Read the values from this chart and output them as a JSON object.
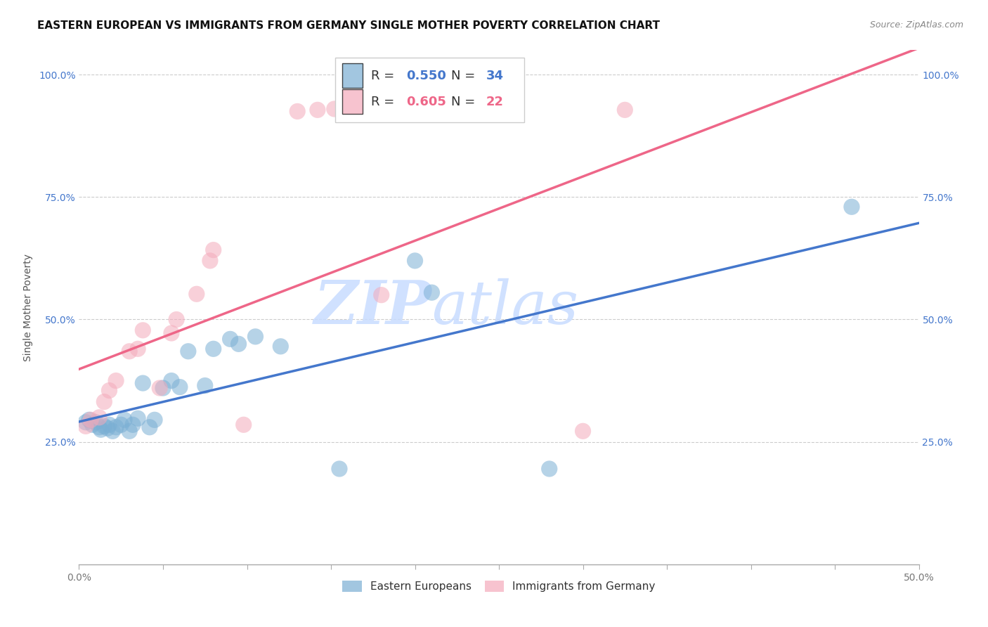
{
  "title": "EASTERN EUROPEAN VS IMMIGRANTS FROM GERMANY SINGLE MOTHER POVERTY CORRELATION CHART",
  "source": "Source: ZipAtlas.com",
  "ylabel": "Single Mother Poverty",
  "xlim": [
    0.0,
    0.5
  ],
  "ylim": [
    0.0,
    1.05
  ],
  "xtick_vals": [
    0.0,
    0.05,
    0.1,
    0.15,
    0.2,
    0.25,
    0.3,
    0.35,
    0.4,
    0.45,
    0.5
  ],
  "xtick_labels": [
    "0.0%",
    "",
    "",
    "",
    "",
    "",
    "",
    "",
    "",
    "",
    "50.0%"
  ],
  "ytick_vals": [
    0.25,
    0.5,
    0.75,
    1.0
  ],
  "ytick_labels": [
    "25.0%",
    "50.0%",
    "75.0%",
    "100.0%"
  ],
  "blue_R": "0.550",
  "blue_N": "34",
  "pink_R": "0.605",
  "pink_N": "22",
  "blue_color": "#7BAFD4",
  "pink_color": "#F4AABB",
  "blue_line_color": "#4477CC",
  "pink_line_color": "#EE6688",
  "watermark_zip": "ZIP",
  "watermark_atlas": "atlas",
  "watermark_color_zip": "#C8DEFF",
  "watermark_color_atlas": "#C8DEFF",
  "blue_scatter_x": [
    0.004,
    0.006,
    0.008,
    0.01,
    0.012,
    0.013,
    0.015,
    0.017,
    0.018,
    0.02,
    0.022,
    0.025,
    0.027,
    0.03,
    0.032,
    0.035,
    0.038,
    0.042,
    0.045,
    0.05,
    0.055,
    0.06,
    0.065,
    0.075,
    0.08,
    0.09,
    0.095,
    0.105,
    0.12,
    0.155,
    0.2,
    0.21,
    0.28,
    0.46
  ],
  "blue_scatter_y": [
    0.29,
    0.295,
    0.285,
    0.29,
    0.28,
    0.275,
    0.282,
    0.278,
    0.285,
    0.272,
    0.28,
    0.285,
    0.295,
    0.272,
    0.285,
    0.298,
    0.37,
    0.28,
    0.295,
    0.36,
    0.375,
    0.362,
    0.435,
    0.365,
    0.44,
    0.46,
    0.45,
    0.465,
    0.445,
    0.195,
    0.62,
    0.555,
    0.195,
    0.73
  ],
  "pink_scatter_x": [
    0.004,
    0.007,
    0.012,
    0.015,
    0.018,
    0.022,
    0.03,
    0.035,
    0.038,
    0.048,
    0.055,
    0.058,
    0.07,
    0.078,
    0.08,
    0.098,
    0.13,
    0.142,
    0.152,
    0.18,
    0.3,
    0.325
  ],
  "pink_scatter_y": [
    0.282,
    0.295,
    0.3,
    0.332,
    0.355,
    0.375,
    0.435,
    0.44,
    0.478,
    0.36,
    0.472,
    0.5,
    0.552,
    0.62,
    0.642,
    0.285,
    0.925,
    0.928,
    0.93,
    0.55,
    0.272,
    0.928
  ],
  "legend_labels": [
    "Eastern Europeans",
    "Immigrants from Germany"
  ],
  "title_fontsize": 11,
  "axis_label_fontsize": 10,
  "tick_fontsize": 10,
  "background_color": "#FFFFFF",
  "grid_color": "#CCCCCC"
}
